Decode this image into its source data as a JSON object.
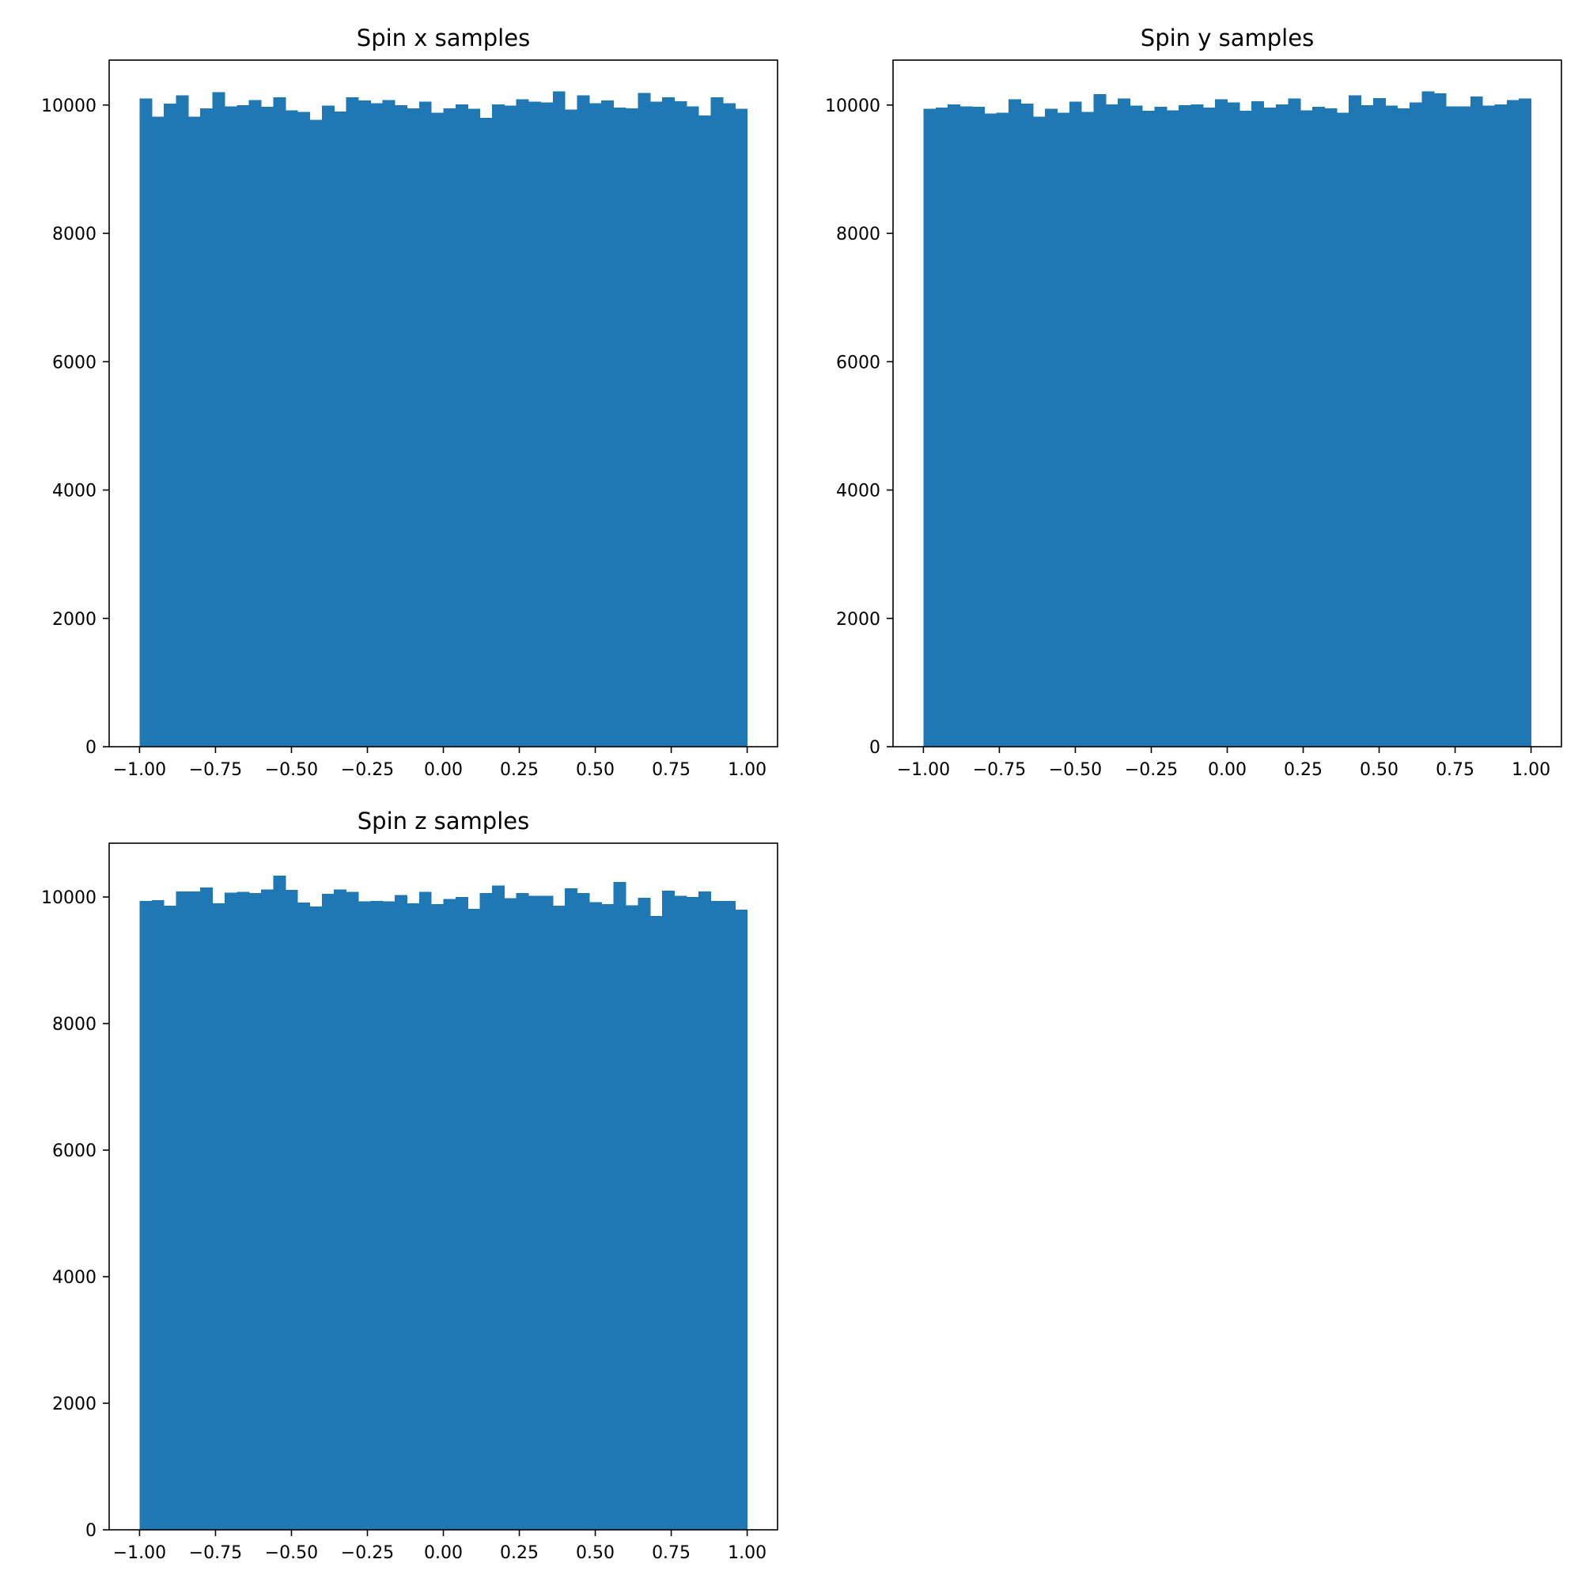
{
  "chart_data": [
    {
      "type": "bar",
      "title": "Spin x samples",
      "xlabel": "",
      "ylabel": "",
      "xlim": [
        -1.1,
        1.1
      ],
      "ylim": [
        0,
        10700
      ],
      "bin_range": [
        -1,
        1
      ],
      "xticks": [
        "−1.00",
        "−0.75",
        "−0.50",
        "−0.25",
        "0.00",
        "0.25",
        "0.50",
        "0.75",
        "1.00"
      ],
      "yticks": [
        "0",
        "2000",
        "4000",
        "6000",
        "8000",
        "10000"
      ],
      "grid": false,
      "color": "#1f77b4",
      "values": [
        10100,
        9820,
        10020,
        10150,
        9820,
        9950,
        10200,
        9980,
        10000,
        10080,
        9970,
        10120,
        9920,
        9890,
        9770,
        9990,
        9900,
        10120,
        10070,
        10030,
        10080,
        10000,
        9950,
        10050,
        9880,
        9950,
        10010,
        9940,
        9800,
        10010,
        9990,
        10090,
        10050,
        10040,
        10210,
        9930,
        10150,
        10030,
        10070,
        9960,
        9950,
        10190,
        10050,
        10120,
        10060,
        9980,
        9840,
        10120,
        10030,
        9940
      ]
    },
    {
      "type": "bar",
      "title": "Spin y samples",
      "xlabel": "",
      "ylabel": "",
      "xlim": [
        -1.1,
        1.1
      ],
      "ylim": [
        0,
        10700
      ],
      "bin_range": [
        -1,
        1
      ],
      "xticks": [
        "−1.00",
        "−0.75",
        "−0.50",
        "−0.25",
        "0.00",
        "0.25",
        "0.50",
        "0.75",
        "1.00"
      ],
      "yticks": [
        "0",
        "2000",
        "4000",
        "6000",
        "8000",
        "10000"
      ],
      "grid": false,
      "color": "#1f77b4",
      "values": [
        9940,
        9960,
        10010,
        9980,
        9970,
        9870,
        9880,
        10090,
        10020,
        9820,
        9940,
        9880,
        10050,
        9890,
        10170,
        10010,
        10100,
        9990,
        9910,
        9970,
        9920,
        10000,
        10010,
        9960,
        10090,
        10040,
        9910,
        10060,
        9960,
        10010,
        10100,
        9920,
        9970,
        9950,
        9880,
        10150,
        10000,
        10110,
        9990,
        9950,
        10040,
        10210,
        10180,
        9980,
        9980,
        10130,
        9990,
        10010,
        10080,
        10100
      ]
    },
    {
      "type": "bar",
      "title": "Spin z samples",
      "xlabel": "",
      "ylabel": "",
      "xlim": [
        -1.1,
        1.1
      ],
      "ylim": [
        0,
        10850
      ],
      "bin_range": [
        -1,
        1
      ],
      "xticks": [
        "−1.00",
        "−0.75",
        "−0.50",
        "−0.25",
        "0.00",
        "0.25",
        "0.50",
        "0.75",
        "1.00"
      ],
      "yticks": [
        "0",
        "2000",
        "4000",
        "6000",
        "8000",
        "10000"
      ],
      "grid": false,
      "color": "#1f77b4",
      "values": [
        9940,
        9950,
        9860,
        10090,
        10090,
        10150,
        9900,
        10070,
        10080,
        10060,
        10120,
        10340,
        10110,
        9910,
        9850,
        10050,
        10120,
        10080,
        9930,
        9940,
        9930,
        10030,
        9900,
        10080,
        9890,
        9970,
        10000,
        9810,
        10060,
        10180,
        9980,
        10060,
        10020,
        10020,
        9860,
        10140,
        10060,
        9920,
        9890,
        10240,
        9870,
        9990,
        9700,
        10100,
        10020,
        10000,
        10090,
        9940,
        9940,
        9800
      ]
    }
  ]
}
